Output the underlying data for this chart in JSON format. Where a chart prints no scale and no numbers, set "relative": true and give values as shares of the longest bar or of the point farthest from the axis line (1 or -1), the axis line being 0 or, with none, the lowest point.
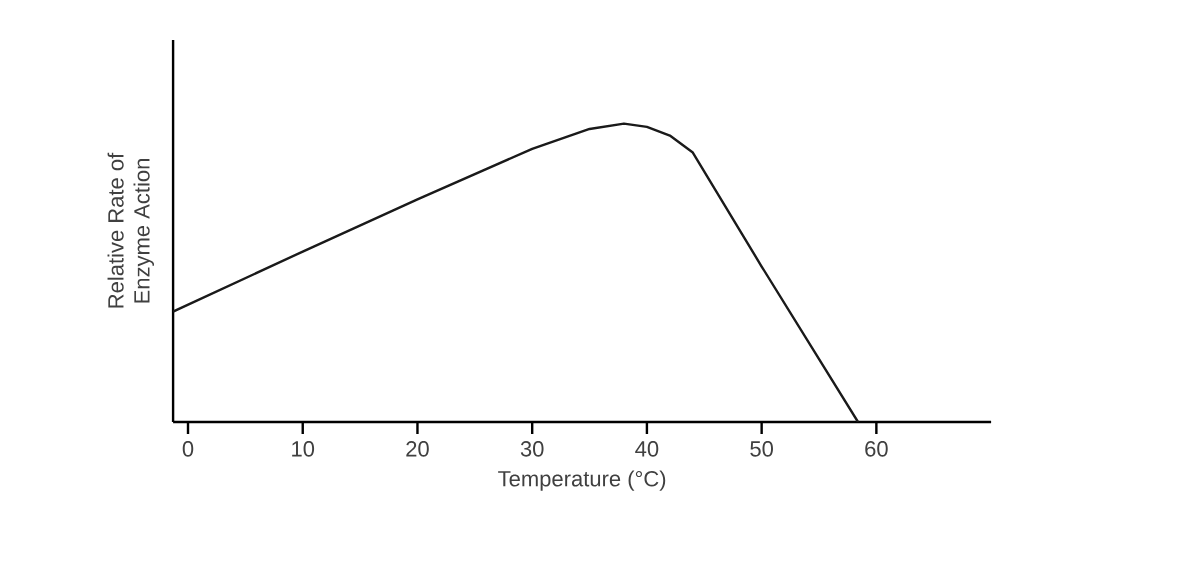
{
  "chart_data": {
    "type": "line",
    "relative": true,
    "xlabel": "Temperature (°C)",
    "ylabel": "Relative Rate of\nEnzyme Action",
    "x": [
      -1.3,
      10,
      20,
      30,
      35,
      38,
      40,
      42,
      44,
      50,
      58.4
    ],
    "values": [
      0.37,
      0.571,
      0.746,
      0.915,
      0.982,
      1.0,
      0.989,
      0.96,
      0.903,
      0.521,
      0
    ],
    "color": "#1a1a1a",
    "xlim": [
      -1.3,
      70
    ],
    "xticks": [
      0,
      10,
      20,
      30,
      40,
      50,
      60
    ],
    "marker": "none",
    "line_style": "solid",
    "grid": false
  }
}
